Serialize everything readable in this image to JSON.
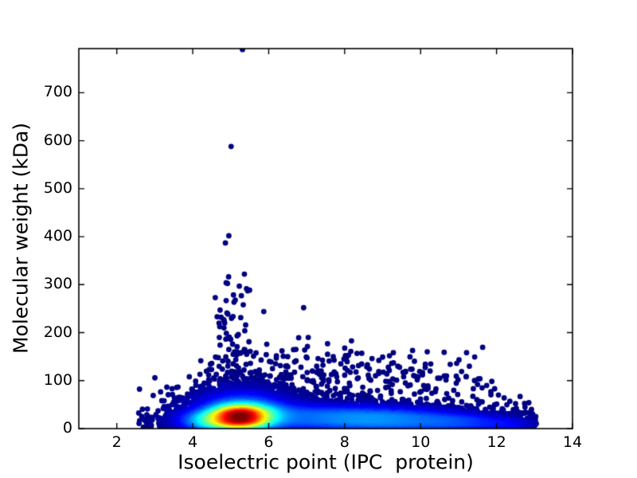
{
  "figure": {
    "background": "#ffffff",
    "spine_color": "#000000",
    "tick_color": "#000000"
  },
  "chart_data": {
    "type": "density_scatter",
    "title": "",
    "xlabel": "Isoelectric point (IPC  protein)",
    "ylabel": "Molecular weight (kDa)",
    "xlim": [
      1,
      14
    ],
    "ylim": [
      0,
      792
    ],
    "xticks": [
      2,
      4,
      6,
      8,
      10,
      12,
      14
    ],
    "yticks": [
      0,
      100,
      200,
      300,
      400,
      500,
      600,
      700
    ],
    "grid": false,
    "legend": "none",
    "colormap": "jet",
    "isolated_point_color": "#000082",
    "hot_core_color": "#8b0000",
    "marker_radius_px": 3.4,
    "seed": 42,
    "gamma": 1.0,
    "density_components": [
      {
        "name": "acidic-core",
        "count": 1900,
        "cx": 5.25,
        "cy": 24,
        "sx": 0.5,
        "sy": 14,
        "amp": 1.0
      },
      {
        "name": "core-halo",
        "count": 2000,
        "cx": 5.3,
        "cy": 40,
        "sx": 0.8,
        "sy": 27,
        "amp": 0.3
      },
      {
        "name": "acid-shoulder",
        "count": 650,
        "cx": 4.35,
        "cy": 16,
        "sx": 0.48,
        "sy": 11,
        "amp": 0.3
      },
      {
        "name": "neutral-band",
        "count": 2300,
        "cx": 7.0,
        "cy": 25,
        "sx": 1.8,
        "sy": 17,
        "amp": 0.22
      },
      {
        "name": "basic-ridge",
        "count": 1750,
        "cx": 9.2,
        "cy": 18,
        "sx": 1.5,
        "sy": 15,
        "amp": 0.27
      },
      {
        "name": "basic-tail",
        "count": 430,
        "cx": 11.2,
        "cy": 13,
        "sx": 0.9,
        "sy": 9,
        "amp": 0.15
      },
      {
        "name": "far-basic-tail",
        "count": 120,
        "cx": 12.35,
        "cy": 8,
        "sx": 0.45,
        "sy": 6,
        "amp": 0.09
      },
      {
        "name": "high-mw-scatter",
        "count": 300,
        "cx": 7.8,
        "cy": 95,
        "sx": 2.2,
        "sy": 38,
        "amp": 0.001,
        "xmin": 4.2,
        "xmax": 12.0,
        "ymax": 200
      },
      {
        "name": "outlier-column",
        "count": 60,
        "cx": 5.05,
        "cy": 170,
        "sx": 0.28,
        "sy": 90,
        "amp": 0.001,
        "ymax": 420
      }
    ],
    "outliers": [
      [
        5.31,
        790
      ],
      [
        5.01,
        588
      ],
      [
        4.95,
        402
      ],
      [
        4.86,
        387
      ],
      [
        5.36,
        322
      ],
      [
        4.88,
        304
      ],
      [
        5.28,
        277
      ],
      [
        5.12,
        268
      ],
      [
        5.33,
        258
      ],
      [
        4.72,
        247
      ],
      [
        4.9,
        241
      ],
      [
        5.87,
        244
      ],
      [
        6.92,
        252
      ],
      [
        5.02,
        230
      ],
      [
        4.84,
        220
      ],
      [
        5.37,
        204
      ],
      [
        5.2,
        196
      ],
      [
        4.7,
        190
      ],
      [
        5.0,
        186
      ],
      [
        5.48,
        181
      ],
      [
        5.05,
        176
      ],
      [
        4.72,
        174
      ],
      [
        4.95,
        165
      ],
      [
        5.1,
        160
      ],
      [
        5.25,
        157
      ],
      [
        5.42,
        155
      ],
      [
        5.6,
        151
      ],
      [
        4.6,
        149
      ],
      [
        5.8,
        143
      ],
      [
        6.02,
        140
      ],
      [
        4.5,
        136
      ],
      [
        5.52,
        136
      ],
      [
        5.15,
        131
      ],
      [
        4.78,
        124
      ],
      [
        5.35,
        122
      ],
      [
        4.62,
        113
      ],
      [
        5.68,
        118
      ],
      [
        5.9,
        112
      ],
      [
        4.42,
        102
      ],
      [
        4.3,
        95
      ],
      [
        6.2,
        147
      ],
      [
        6.35,
        162
      ],
      [
        6.5,
        150
      ],
      [
        6.68,
        139
      ],
      [
        6.85,
        128
      ],
      [
        7.02,
        171
      ],
      [
        7.3,
        146
      ],
      [
        7.55,
        177
      ],
      [
        7.7,
        150
      ],
      [
        7.9,
        135
      ],
      [
        8.18,
        183
      ],
      [
        8.02,
        152
      ],
      [
        8.45,
        157
      ],
      [
        8.6,
        133
      ],
      [
        8.72,
        146
      ],
      [
        9.0,
        149
      ],
      [
        9.15,
        128
      ],
      [
        6.1,
        125
      ],
      [
        6.45,
        118
      ],
      [
        7.15,
        120
      ],
      [
        7.45,
        112
      ],
      [
        8.3,
        118
      ],
      [
        8.9,
        115
      ],
      [
        9.4,
        130
      ],
      [
        9.6,
        118
      ],
      [
        9.74,
        124
      ],
      [
        10.05,
        112
      ],
      [
        10.25,
        120
      ],
      [
        10.45,
        105
      ],
      [
        10.62,
        159
      ],
      [
        10.78,
        134
      ],
      [
        10.95,
        136
      ],
      [
        11.08,
        119
      ],
      [
        11.2,
        108
      ],
      [
        11.42,
        100
      ],
      [
        11.5,
        92
      ],
      [
        11.62,
        85
      ],
      [
        11.74,
        90
      ],
      [
        11.85,
        77
      ],
      [
        11.95,
        83
      ],
      [
        12.05,
        70
      ],
      [
        12.2,
        64
      ],
      [
        12.35,
        57
      ],
      [
        12.5,
        52
      ],
      [
        12.62,
        67
      ],
      [
        12.75,
        45
      ],
      [
        12.85,
        54
      ],
      [
        12.92,
        40
      ],
      [
        12.95,
        18
      ],
      [
        13.0,
        8
      ],
      [
        2.7,
        3
      ],
      [
        2.78,
        5
      ],
      [
        2.88,
        3
      ],
      [
        3.2,
        11
      ],
      [
        3.32,
        6
      ],
      [
        3.45,
        14
      ],
      [
        3.52,
        7
      ],
      [
        3.62,
        18
      ],
      [
        3.56,
        30
      ],
      [
        3.72,
        26
      ],
      [
        3.78,
        44
      ],
      [
        3.88,
        36
      ],
      [
        3.95,
        54
      ],
      [
        4.02,
        64
      ],
      [
        4.1,
        74
      ],
      [
        4.2,
        85
      ]
    ]
  }
}
